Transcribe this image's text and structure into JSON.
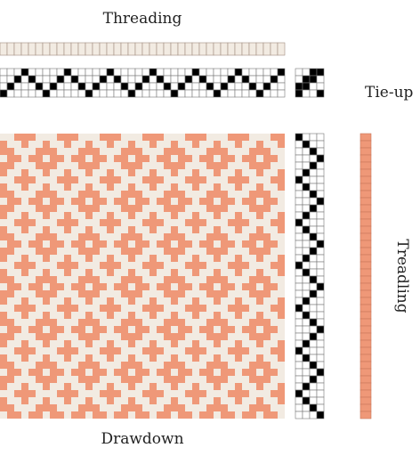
{
  "labels": {
    "threading": "Threading",
    "tieup": "Tie-up",
    "treadling": "Treadling",
    "drawdown": "Drawdown"
  },
  "colors": {
    "warp": "#f2ebe2",
    "weft": "#ef9878",
    "grid_line": "#777777",
    "cell_on": "#000000",
    "cell_off": "#ffffff",
    "grid_line_light": "#a08d80",
    "weft_line": "#c8765a"
  },
  "draft": {
    "shafts": 4,
    "treadles": 4,
    "threading": [
      1,
      2,
      3,
      4,
      3,
      2,
      1,
      2,
      3,
      4,
      3,
      2,
      1,
      2,
      3,
      4,
      3,
      2,
      1,
      2,
      3,
      4,
      3,
      2,
      1,
      2,
      3,
      4,
      3,
      2,
      1,
      2,
      3,
      4,
      3,
      2,
      1,
      2,
      3,
      4
    ],
    "tieup": [
      [
        1,
        0,
        0,
        1
      ],
      [
        1,
        1,
        0,
        0
      ],
      [
        0,
        1,
        1,
        0
      ],
      [
        0,
        0,
        1,
        1
      ]
    ],
    "treadling": [
      1,
      2,
      3,
      4,
      3,
      2,
      1,
      2,
      3,
      4,
      3,
      2,
      1,
      2,
      3,
      4,
      3,
      2,
      1,
      2,
      3,
      4,
      3,
      2,
      1,
      2,
      3,
      4,
      3,
      2,
      1,
      2,
      3,
      4,
      3,
      2,
      1,
      2,
      3,
      4
    ]
  }
}
